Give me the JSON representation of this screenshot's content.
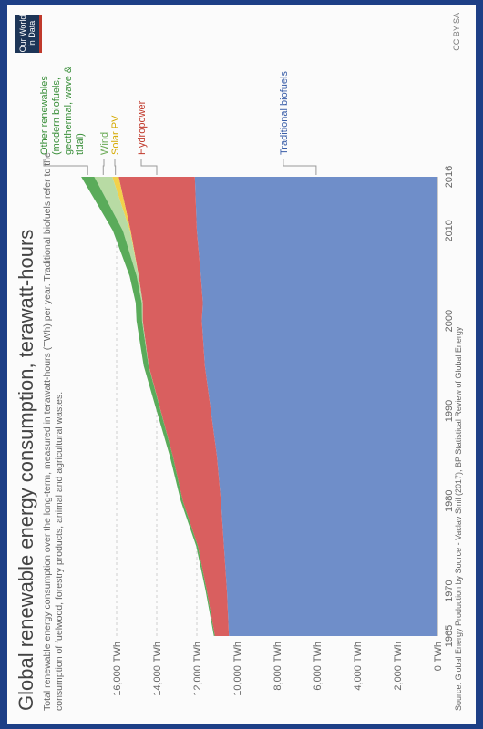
{
  "header": {
    "title": "Global renewable energy consumption, terawatt-hours",
    "subtitle": "Total renewable energy consumption over the long-term, measured in terawatt-hours (TWh) per year. Traditional biofuels refer to the consumption of fuelwood, forestry products, animal and agricultural wastes.",
    "logo_line1": "Our World",
    "logo_line2": "in Data"
  },
  "footer": {
    "source": "Source: Global Energy Production by Source - Vaclav Smil (2017), BP Statistical Review of Global Energy",
    "license": "CC BY-SA"
  },
  "colors": {
    "traditional_biofuels": "#6f8ec9",
    "hydropower": "#d95f5f",
    "solar_pv": "#f2d14b",
    "wind": "#b8dba4",
    "other_renewables": "#5aab5a",
    "background_frame": "#1d3f86"
  },
  "chart_data": {
    "type": "area",
    "stacked": true,
    "x": [
      1965,
      1970,
      1975,
      1980,
      1985,
      1990,
      1995,
      2000,
      2002,
      2005,
      2010,
      2016
    ],
    "xlim": [
      1965,
      2016
    ],
    "ylim": [
      0,
      17000
    ],
    "y_ticks": [
      0,
      2000,
      4000,
      6000,
      8000,
      10000,
      12000,
      14000,
      16000
    ],
    "y_tick_labels": [
      "0 TWh",
      "2,000 TWh",
      "4,000 TWh",
      "6,000 TWh",
      "8,000 TWh",
      "10,000 TWh",
      "12,000 TWh",
      "14,000 TWh",
      "16,000 TWh"
    ],
    "x_tick_labels": [
      "1965",
      "1970",
      "1980",
      "1990",
      "2000",
      "2010",
      "2016"
    ],
    "x_ticks": [
      1965,
      1970,
      1980,
      1990,
      2000,
      2010,
      2016
    ],
    "grid": true,
    "legend_position": "right",
    "series": [
      {
        "name": "Traditional biofuels",
        "color_key": "traditional_biofuels",
        "values": [
          10400,
          10500,
          10650,
          10800,
          11000,
          11300,
          11600,
          11750,
          11700,
          11800,
          12000,
          12100
        ]
      },
      {
        "name": "Hydropower",
        "color_key": "hydropower",
        "values": [
          700,
          1000,
          1300,
          1900,
          2200,
          2500,
          2800,
          2950,
          3000,
          3100,
          3300,
          3800
        ]
      },
      {
        "name": "Solar PV",
        "color_key": "solar_pv",
        "values": [
          0,
          0,
          0,
          0,
          0,
          0,
          0,
          0,
          0,
          5,
          35,
          320
        ]
      },
      {
        "name": "Wind",
        "color_key": "wind",
        "values": [
          0,
          0,
          0,
          0,
          0,
          5,
          10,
          30,
          50,
          100,
          350,
          900
        ]
      },
      {
        "name": "Other renewables (modern biofuels, geothermal, wave & tidal)",
        "color_key": "other_renewables",
        "values": [
          50,
          60,
          80,
          100,
          150,
          200,
          240,
          280,
          300,
          350,
          500,
          650
        ]
      }
    ],
    "legend_labels": [
      [
        "Other renewables",
        "(modern biofuels,",
        "geothermal, wave &",
        "tidal)"
      ],
      [
        "Wind"
      ],
      [
        "Solar PV"
      ],
      [
        "Hydropower"
      ],
      [
        "Traditional biofuels"
      ]
    ]
  }
}
